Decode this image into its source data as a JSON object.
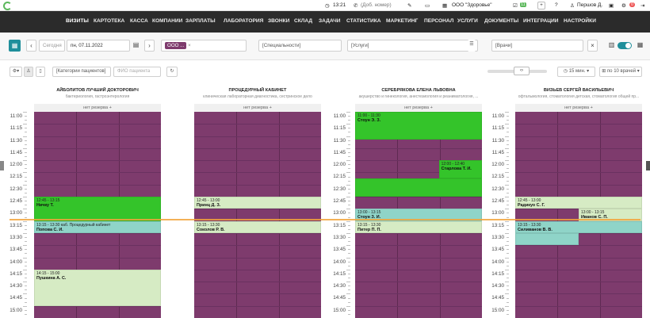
{
  "topbar": {
    "time": "13:21",
    "ext_placeholder": "(Доб. номер)",
    "org": "ООО \"Здоровье\"",
    "count1": "11",
    "user": "Першов Д.",
    "badge": "0"
  },
  "nav": [
    "ВИЗИТЫ",
    "КАРТОТЕКА",
    "КАССА",
    "КОМПАНИИ",
    "ЗАРПЛАТЫ",
    "ЛАБОРАТОРИЯ",
    "ЗВОНКИ",
    "СКЛАД",
    "ЗАДАЧИ",
    "СТАТИСТИКА",
    "МАРКЕТИНГ",
    "ПЕРСОНАЛ",
    "УСЛУГИ",
    "ДОКУМЕНТЫ",
    "ИНТЕГРАЦИИ",
    "НАСТРОЙКИ"
  ],
  "filters": {
    "today": "Сегодня",
    "date": "пн, 07.11.2022",
    "org_chip": "ООО ...",
    "specialties": "[Специальности]",
    "services": "[Услуги]",
    "doctors": "[Врачи]"
  },
  "toolbar": {
    "patient_category": "[Категории пациентов]",
    "fio_placeholder": "ФИО пациента",
    "interval": "15 мин.",
    "per_doctor": "по 10 врачей"
  },
  "reserve_label": "нет резерва",
  "times": [
    "11:00",
    "11:15",
    "11:30",
    "11:45",
    "12:00",
    "12:15",
    "12:30",
    "12:45",
    "13:00",
    "13:15",
    "13:30",
    "13:45",
    "14:00",
    "14:15",
    "14:30",
    "14:45",
    "15:00"
  ],
  "columns": [
    {
      "name": "АЙБОЛИТОВ ЛУЧШИЙ ДОКТОРОВИЧ",
      "spec": "бактериология, гастроэнтерология",
      "events": [
        {
          "time": "12:45 - 13:15",
          "name": "Ничку Т.",
          "note": "",
          "color": "#34c42a"
        },
        {
          "time": "13:15 - 13:30",
          "name": "Попова С. И.",
          "note": "каб. Процедурный кабинет",
          "color": "#8fd4c8"
        },
        {
          "time": "14:15 - 15:00",
          "name": "Пушкина А. С.",
          "note": "",
          "color": "#d6ebc4"
        }
      ]
    },
    {
      "name": "ПРОЦЕДУРНЫЙ КАБИНЕТ",
      "spec": "клиническая лабораторная диагностика, сестринское дело",
      "events": [
        {
          "time": "12:45 - 13:00",
          "name": "Принц Д. З.",
          "note": "",
          "color": "#d6ebc4"
        },
        {
          "time": "13:15 - 13:30",
          "name": "Соколов Р. В.",
          "note": "",
          "color": "#d6ebc4"
        }
      ]
    },
    {
      "name": "СЕРЕБРЯКОВА ЕЛЕНА ЛЬВОВНА",
      "spec": "акушерство и гинекология, анестезиология и реаниматология, ...",
      "events": [
        {
          "time": "11:00 - 11:30",
          "name": "Стоун Э. З.",
          "note": "",
          "color": "#34c42a"
        },
        {
          "time": "12:00 - 12:40",
          "name": "Старлова Т. И.",
          "note": "",
          "color": "#34c42a"
        },
        {
          "time": "",
          "name": "",
          "note": "",
          "color": "#34c42a"
        },
        {
          "time": "13:00 - 13:15",
          "name": "Стоун З. И.",
          "note": "",
          "color": "#8fd4c8"
        },
        {
          "time": "13:15 - 13:30",
          "name": "Питер П. П.",
          "note": "",
          "color": "#d6ebc4"
        }
      ]
    },
    {
      "name": "ВИЗЬЕВ СЕРГЕЙ ВАСИЛЬЕВИЧ",
      "spec": "офтальмология, стоматология детская, стоматология общей пр...",
      "events": [
        {
          "time": "12:45 - 13:00",
          "name": "Радикуо С. Г.",
          "note": "",
          "color": "#d6ebc4"
        },
        {
          "time": "13:00 - 13:15",
          "name": "Иванов С. П.",
          "note": "",
          "color": "#d6ebc4"
        },
        {
          "time": "13:15 - 13:30",
          "name": "Силиванов В. В.",
          "note": "",
          "color": "#8fd4c8"
        },
        {
          "time": "",
          "name": "",
          "note": "",
          "color": "#8fd4c8"
        }
      ]
    }
  ]
}
